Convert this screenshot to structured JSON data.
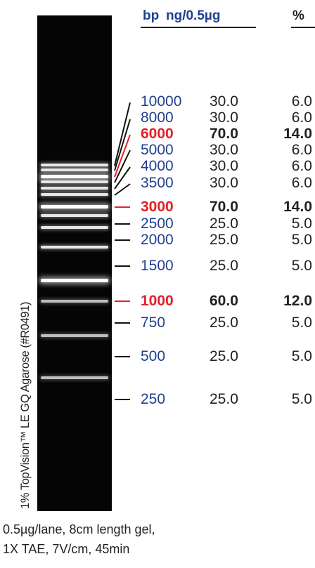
{
  "headers": {
    "bp": "bp",
    "ng": "ng/0.5µg",
    "pct": "%"
  },
  "ladder": [
    {
      "bp": "10000",
      "ng": "30.0",
      "pct": "6.0",
      "highlight": false
    },
    {
      "bp": "8000",
      "ng": "30.0",
      "pct": "6.0",
      "highlight": false
    },
    {
      "bp": "6000",
      "ng": "70.0",
      "pct": "14.0",
      "highlight": true
    },
    {
      "bp": "5000",
      "ng": "30.0",
      "pct": "6.0",
      "highlight": false
    },
    {
      "bp": "4000",
      "ng": "30.0",
      "pct": "6.0",
      "highlight": false
    },
    {
      "bp": "3500",
      "ng": "30.0",
      "pct": "6.0",
      "highlight": false
    },
    {
      "bp": "3000",
      "ng": "70.0",
      "pct": "14.0",
      "highlight": true
    },
    {
      "bp": "2500",
      "ng": "25.0",
      "pct": "5.0",
      "highlight": false
    },
    {
      "bp": "2000",
      "ng": "25.0",
      "pct": "5.0",
      "highlight": false
    },
    {
      "bp": "1500",
      "ng": "25.0",
      "pct": "5.0",
      "highlight": false
    },
    {
      "bp": "1000",
      "ng": "60.0",
      "pct": "12.0",
      "highlight": true
    },
    {
      "bp": "750",
      "ng": "25.0",
      "pct": "5.0",
      "highlight": false
    },
    {
      "bp": "500",
      "ng": "25.0",
      "pct": "5.0",
      "highlight": false
    },
    {
      "bp": "250",
      "ng": "25.0",
      "pct": "5.0",
      "highlight": false
    }
  ],
  "gel_label": "1% TopVision™ LE GQ Agarose (#R0491)",
  "footer": {
    "line1": "0.5µg/lane, 8cm length gel,",
    "line2": "1X TAE, 7V/cm, 45min"
  },
  "colors": {
    "blue": "#1f3f8f",
    "red": "#e2212a",
    "gel": "#050505"
  }
}
